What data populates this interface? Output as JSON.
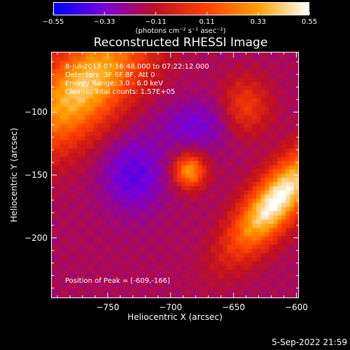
{
  "chart_data": {
    "type": "heatmap",
    "title": "Reconstructed RHESSI Image",
    "xlabel": "Heliocentric X (arcsec)",
    "ylabel": "Heliocentric Y (arcsec)",
    "xlim": [
      -795,
      -598
    ],
    "ylim": [
      -248,
      -52
    ],
    "x_ticks": [
      -750,
      -700,
      -650,
      -600
    ],
    "x_tick_labels": [
      "−750",
      "−700",
      "−650",
      "−600"
    ],
    "y_ticks": [
      -100,
      -150,
      -200
    ],
    "y_tick_labels": [
      "−100",
      "−150",
      "−200"
    ],
    "colorbar": {
      "min": -0.55,
      "max": 0.55,
      "ticks": [
        -0.55,
        -0.33,
        -0.11,
        0.11,
        0.33,
        0.55
      ],
      "tick_labels": [
        "−0.55",
        "−0.33",
        "−0.11",
        "0.11",
        "0.33",
        "0.55"
      ],
      "unit_label": "(photons cm⁻² s⁻¹ asec⁻²)",
      "colors": [
        "#0000ff",
        "#7a00d8",
        "#c01020",
        "#ff4000",
        "#ffa000",
        "#ffffff"
      ]
    },
    "info_lines": [
      "8-Jul-2017 07:16:48.000 to 07:22:12.000",
      "Detectors: 3F 6F 8F, Att 0",
      "Energy Range: 3.0 - 6.0 keV",
      "Clean    Total counts: 1.57E+05"
    ],
    "peak_label": "Position of Peak = [-609,-166]",
    "peak": [
      -609,
      -166
    ],
    "sources": [
      {
        "x": -685,
        "y": -147,
        "value": 0.33
      },
      {
        "x": -609,
        "y": -166,
        "value": 0.55
      },
      {
        "x": -780,
        "y": -70,
        "value": 0.45
      },
      {
        "x": -640,
        "y": -95,
        "value": 0.15
      }
    ]
  },
  "footer": {
    "timestamp": "5-Sep-2022 21:59"
  }
}
